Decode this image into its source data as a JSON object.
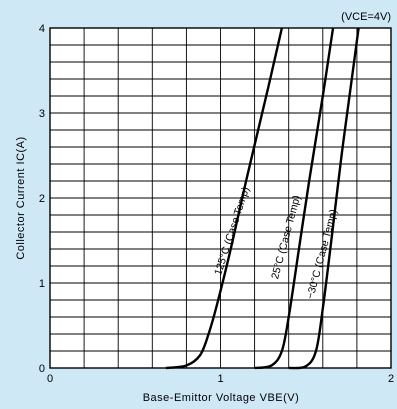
{
  "chart_data": {
    "type": "line",
    "condition_label": "(VCE=4V)",
    "xlabel": "Base-Emittor Voltage VBE(V)",
    "ylabel": "Collector Current IC(A)",
    "xlim": [
      0,
      2
    ],
    "ylim": [
      0,
      4
    ],
    "x_ticks": [
      0,
      1,
      2
    ],
    "y_ticks": [
      0,
      1,
      2,
      3,
      4
    ],
    "x_tick_labels": [
      "0",
      "1",
      "2"
    ],
    "y_tick_labels": [
      "0",
      "1",
      "2",
      "3",
      "4"
    ],
    "grid": true,
    "series": [
      {
        "name": "125°C (Case Temp)",
        "points": [
          [
            0.68,
            0.0
          ],
          [
            0.8,
            0.03
          ],
          [
            0.88,
            0.15
          ],
          [
            0.93,
            0.4
          ],
          [
            0.98,
            0.75
          ],
          [
            1.06,
            1.4
          ],
          [
            1.15,
            2.2
          ],
          [
            1.28,
            3.3
          ],
          [
            1.36,
            4.0
          ]
        ]
      },
      {
        "name": "25°C (Case Temp)",
        "points": [
          [
            1.2,
            0.0
          ],
          [
            1.3,
            0.03
          ],
          [
            1.36,
            0.2
          ],
          [
            1.4,
            0.6
          ],
          [
            1.46,
            1.4
          ],
          [
            1.52,
            2.2
          ],
          [
            1.6,
            3.2
          ],
          [
            1.66,
            4.0
          ]
        ]
      },
      {
        "name": "−30°C (Case Temp)",
        "points": [
          [
            1.4,
            0.0
          ],
          [
            1.5,
            0.02
          ],
          [
            1.56,
            0.2
          ],
          [
            1.6,
            0.7
          ],
          [
            1.65,
            1.5
          ],
          [
            1.71,
            2.5
          ],
          [
            1.77,
            3.4
          ],
          [
            1.81,
            4.0
          ]
        ]
      }
    ]
  }
}
